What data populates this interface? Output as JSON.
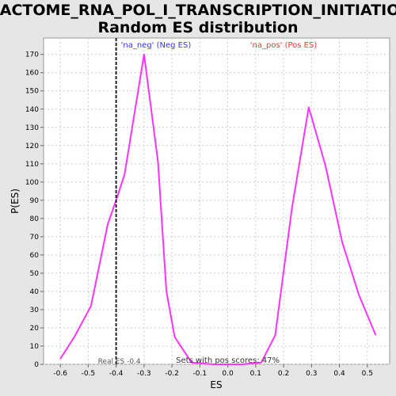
{
  "chart_data": {
    "type": "line",
    "title": [
      "REACTOME_RNA_POL_I_TRANSCRIPTION_INITIATION:",
      "Random ES distribution"
    ],
    "xlabel": "ES",
    "ylabel": "P(ES)",
    "xlim": [
      -0.66,
      0.58
    ],
    "ylim": [
      0,
      179
    ],
    "x_ticks": [
      -0.6,
      -0.5,
      -0.4,
      -0.3,
      -0.2,
      -0.1,
      0.0,
      0.1,
      0.2,
      0.3,
      0.4,
      0.5
    ],
    "x_tick_labels": [
      "-0.6",
      "-0.5",
      "-0.4",
      "-0.3",
      "-0.2",
      "-0.1",
      "0.0",
      "0.1",
      "0.2",
      "0.3",
      "0.4",
      "0.5"
    ],
    "y_ticks": [
      0,
      10,
      20,
      30,
      40,
      50,
      60,
      70,
      80,
      90,
      100,
      110,
      120,
      130,
      140,
      150,
      160,
      170
    ],
    "y_tick_labels": [
      "0",
      "10",
      "20",
      "30",
      "40",
      "50",
      "60",
      "70",
      "80",
      "90",
      "100",
      "110",
      "120",
      "130",
      "140",
      "150",
      "160",
      "170"
    ],
    "grid": true,
    "series": [
      {
        "name": "'na_neg' (Neg ES)",
        "color": "#ff33ff",
        "x": [
          -0.6,
          -0.55,
          -0.49,
          -0.43,
          -0.4,
          -0.37,
          -0.3,
          -0.25,
          -0.22,
          -0.19,
          -0.13,
          -0.05,
          0.05
        ],
        "y": [
          3,
          15,
          32,
          77,
          90,
          104,
          170,
          111,
          40,
          15,
          1,
          0,
          0
        ]
      },
      {
        "name": "'na_pos' (Pos ES)",
        "color": "#ff33ff",
        "x": [
          0.05,
          0.12,
          0.17,
          0.23,
          0.29,
          0.35,
          0.41,
          0.47,
          0.53
        ],
        "y": [
          0,
          1,
          16,
          86,
          141,
          109,
          67,
          38,
          16
        ]
      }
    ],
    "legend": [
      {
        "label": "'na_neg' (Neg ES)",
        "color": "#3333ff",
        "position": "top-left"
      },
      {
        "label": "'na_pos' (Pos ES)",
        "color": "#ff3333",
        "position": "top-right"
      }
    ],
    "real_es": {
      "value": -0.4,
      "label": "Real ES -0.4"
    },
    "annotation": "Sets with pos scores: 47%"
  }
}
